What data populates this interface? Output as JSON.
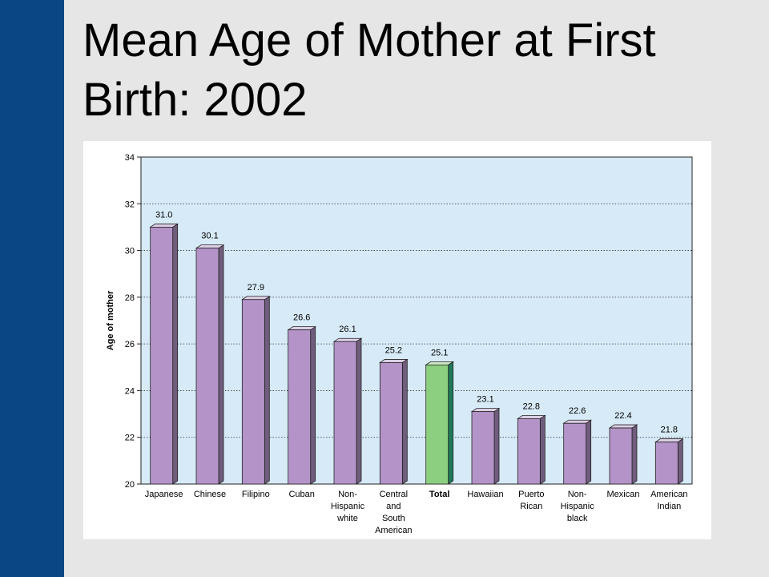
{
  "slide": {
    "title_line1": "Mean Age of Mother at First",
    "title_line2": "Birth: 2002"
  },
  "colors": {
    "sidebar": "#0a4682",
    "background": "#e6e6e6",
    "plot_background": "#d7eaf7",
    "bar_default": "#b494c8",
    "bar_highlight": "#8ccf80"
  },
  "chart_data": {
    "type": "bar",
    "title": "",
    "xlabel": "",
    "ylabel": "Age of mother",
    "ylim": [
      20,
      34
    ],
    "yticks": [
      20,
      22,
      24,
      26,
      28,
      30,
      32,
      34
    ],
    "grid": true,
    "highlight_category": "Total",
    "categories": [
      [
        "Japanese"
      ],
      [
        "Chinese"
      ],
      [
        "Filipino"
      ],
      [
        "Cuban"
      ],
      [
        "Non-",
        "Hispanic",
        "white"
      ],
      [
        "Central",
        "and",
        "South",
        "American"
      ],
      [
        "Total"
      ],
      [
        "Hawaiian"
      ],
      [
        "Puerto",
        "Rican"
      ],
      [
        "Non-",
        "Hispanic",
        "black"
      ],
      [
        "Mexican"
      ],
      [
        "American",
        "Indian"
      ]
    ],
    "values": [
      31.0,
      30.1,
      27.9,
      26.6,
      26.1,
      25.2,
      25.1,
      23.1,
      22.8,
      22.6,
      22.4,
      21.8
    ],
    "value_labels": [
      "31.0",
      "30.1",
      "27.9",
      "26.6",
      "26.1",
      "25.2",
      "25.1",
      "23.1",
      "22.8",
      "22.6",
      "22.4",
      "21.8"
    ]
  }
}
